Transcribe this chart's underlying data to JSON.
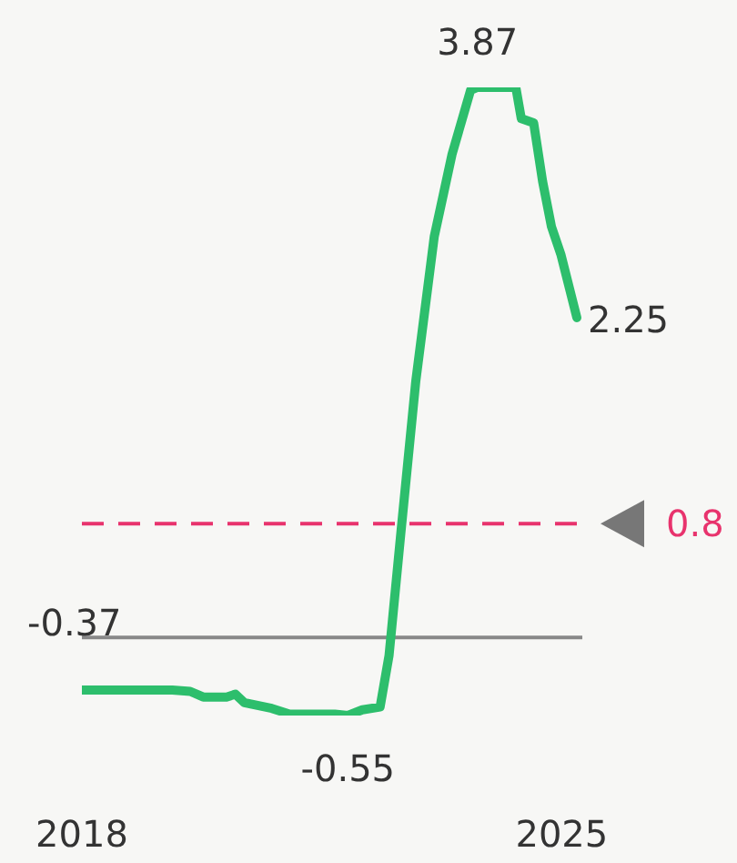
{
  "chart_data": {
    "type": "line",
    "x": [
      2018.0,
      2019.32,
      2019.58,
      2019.77,
      2020.11,
      2020.24,
      2020.37,
      2020.77,
      2021.03,
      2021.69,
      2021.88,
      2022.09,
      2022.35,
      2022.48,
      2022.66,
      2022.87,
      2023.14,
      2023.4,
      2023.67,
      2023.77,
      2024.33,
      2024.41,
      2024.59,
      2024.72,
      2024.85,
      2024.99,
      2025.22
    ],
    "series": [
      {
        "color": "#2dbe6c",
        "values": [
          -0.37,
          -0.37,
          -0.38,
          -0.42,
          -0.42,
          -0.4,
          -0.46,
          -0.5,
          -0.54,
          -0.54,
          -0.55,
          -0.51,
          -0.49,
          -0.13,
          0.77,
          1.8,
          2.82,
          3.4,
          3.85,
          3.87,
          3.87,
          3.65,
          3.62,
          3.21,
          2.89,
          2.69,
          2.25
        ],
        "value_labels": [
          "-0.37",
          null,
          null,
          null,
          null,
          null,
          null,
          null,
          null,
          null,
          "-0.55",
          null,
          null,
          null,
          null,
          null,
          null,
          null,
          null,
          "3.87",
          null,
          null,
          null,
          null,
          null,
          null,
          "2.25"
        ]
      }
    ],
    "xlim": [
      2018,
      2025.3
    ],
    "xticks": [
      2018,
      2025
    ],
    "tick_labels": "x",
    "marker": "none",
    "line_style": "solid",
    "ref_lines": [
      {
        "axis": "y",
        "value": 0,
        "color": "#888888",
        "line_style": "solid"
      },
      {
        "axis": "y",
        "value": 0.8,
        "label": "0.8",
        "color": "#e8336d",
        "line_style": "dashed"
      }
    ]
  }
}
